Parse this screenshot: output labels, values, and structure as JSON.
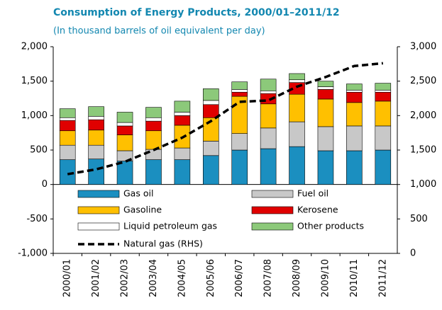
{
  "chart_data": {
    "type": "bar",
    "title": "Consumption of Energy Products, 2000/01–2011/12",
    "subtitle": "(In thousand barrels of oil equivalent per day)",
    "categories": [
      "2000/01",
      "2001/02",
      "2002/03",
      "2003/04",
      "2004/05",
      "2005/06",
      "2006/07",
      "2007/08",
      "2008/09",
      "2009/10",
      "2010/11",
      "2011/12"
    ],
    "series": [
      {
        "name": "Gas oil",
        "color": "#1b8fc0",
        "values": [
          360,
          370,
          340,
          360,
          360,
          420,
          500,
          520,
          550,
          490,
          490,
          500
        ]
      },
      {
        "name": "Fuel oil",
        "color": "#c8c8c8",
        "values": [
          210,
          200,
          150,
          150,
          170,
          210,
          240,
          300,
          360,
          350,
          360,
          350
        ]
      },
      {
        "name": "Gasoline",
        "color": "#ffc000",
        "values": [
          210,
          220,
          230,
          270,
          330,
          340,
          540,
          350,
          400,
          400,
          340,
          360
        ]
      },
      {
        "name": "Kerosene",
        "color": "#e00000",
        "values": [
          150,
          150,
          130,
          140,
          140,
          190,
          60,
          150,
          170,
          140,
          150,
          130
        ]
      },
      {
        "name": "Liquid petroleum gas",
        "color": "#ffffff",
        "values": [
          40,
          50,
          50,
          50,
          50,
          60,
          40,
          40,
          40,
          40,
          30,
          30
        ]
      },
      {
        "name": "Other products",
        "color": "#8cc97a",
        "values": [
          130,
          140,
          150,
          150,
          160,
          170,
          110,
          170,
          90,
          80,
          90,
          100
        ]
      },
      {
        "name": "Natural gas (RHS)",
        "color": "#000000",
        "axis": "y2",
        "type": "line",
        "values": [
          1150,
          1220,
          1330,
          1500,
          1680,
          1920,
          2200,
          2220,
          2420,
          2560,
          2720,
          2760
        ]
      }
    ],
    "ylim": [
      -1000,
      2000
    ],
    "yticks": [
      {
        "value": -1000,
        "label": "-1,000"
      },
      -500,
      0,
      500,
      {
        "value": 1000,
        "label": "1,000"
      },
      {
        "value": 1500,
        "label": "1,500"
      },
      {
        "value": 2000,
        "label": "2,000"
      }
    ],
    "y2lim": [
      0,
      3000
    ],
    "y2ticks": [
      0,
      500,
      {
        "value": 1000,
        "label": "1,000"
      },
      {
        "value": 1500,
        "label": "1,500"
      },
      {
        "value": 2000,
        "label": "2,000"
      },
      {
        "value": 2500,
        "label": "2,500"
      },
      {
        "value": 3000,
        "label": "3,000"
      }
    ],
    "grid": false
  }
}
